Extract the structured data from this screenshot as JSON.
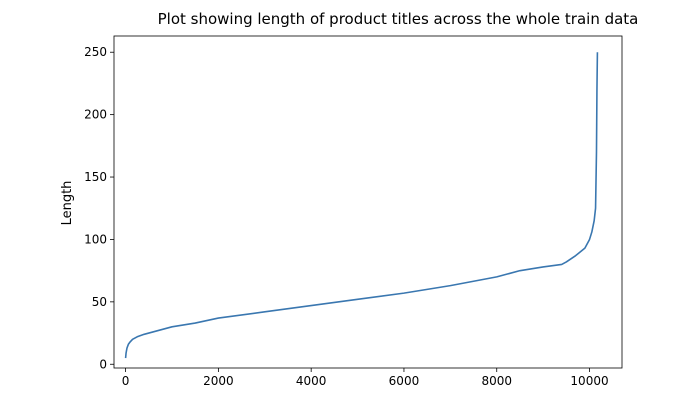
{
  "chart_data": {
    "type": "line",
    "title": "Plot showing length of product titles across the whole train data",
    "xlabel": "",
    "ylabel": "Length",
    "xlim": [
      -250,
      10700
    ],
    "ylim": [
      -3,
      263
    ],
    "x_ticks": [
      0,
      2000,
      4000,
      6000,
      8000,
      10000
    ],
    "y_ticks": [
      0,
      50,
      100,
      150,
      200,
      250
    ],
    "grid": false,
    "legend": "none",
    "series": [
      {
        "color": "#3a77b0",
        "x": [
          0,
          10,
          30,
          60,
          100,
          150,
          250,
          400,
          600,
          800,
          1000,
          1500,
          2000,
          3000,
          4000,
          5000,
          6000,
          7000,
          8000,
          8500,
          9000,
          9400,
          9500,
          9700,
          9900,
          10000,
          10050,
          10100,
          10130,
          10150,
          10160,
          10170
        ],
        "values": [
          5,
          9,
          13,
          16,
          18,
          20,
          22,
          24,
          26,
          28,
          30,
          33,
          37,
          42,
          47,
          52,
          57,
          63,
          70,
          75,
          78,
          80,
          82,
          87,
          93,
          100,
          106,
          115,
          125,
          170,
          220,
          250
        ]
      }
    ]
  }
}
